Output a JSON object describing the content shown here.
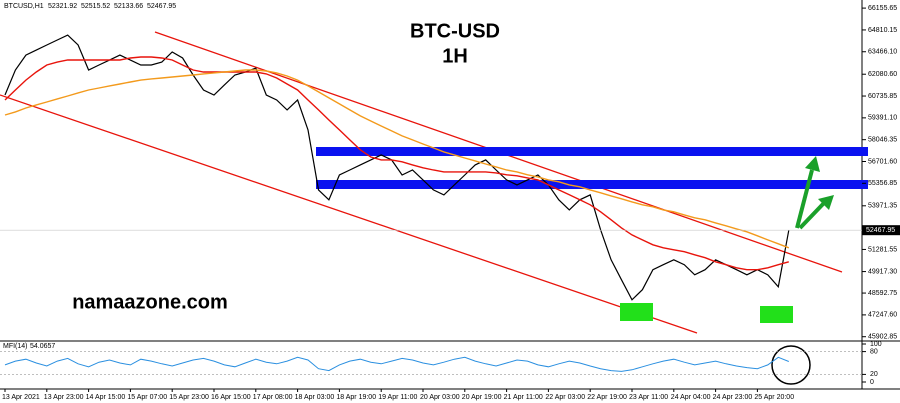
{
  "chart_data": {
    "type": "line",
    "symbol": "BTCUSD,H1",
    "ohlc": [
      52321.92,
      52515.52,
      52133.66,
      52467.95
    ],
    "title": "BTC-USD",
    "subtitle": "1H",
    "watermark": "namaazone.com",
    "categories": [
      "13 Apr 2021",
      null,
      null,
      null,
      "13 Apr 23:00",
      null,
      null,
      null,
      "14 Apr 15:00",
      null,
      null,
      null,
      "15 Apr 07:00",
      null,
      null,
      null,
      "15 Apr 23:00",
      null,
      null,
      null,
      "16 Apr 15:00",
      null,
      null,
      null,
      "17 Apr 08:00",
      null,
      null,
      null,
      "18 Apr 03:00",
      null,
      null,
      null,
      "18 Apr 19:00",
      null,
      null,
      null,
      "19 Apr 11:00",
      null,
      null,
      null,
      "20 Apr 03:00",
      null,
      null,
      null,
      "20 Apr 19:00",
      null,
      null,
      null,
      "21 Apr 11:00",
      null,
      null,
      null,
      "22 Apr 03:00",
      null,
      null,
      null,
      "22 Apr 19:00",
      null,
      null,
      null,
      "23 Apr 11:00",
      null,
      null,
      null,
      "24 Apr 04:00",
      null,
      null,
      null,
      "24 Apr 23:00",
      null,
      null,
      null,
      "25 Apr 20:00",
      null,
      null,
      null
    ],
    "series": [
      {
        "color": "#000000",
        "values": [
          60800,
          62340,
          63260,
          63570,
          63880,
          64190,
          64490,
          63880,
          62340,
          62650,
          62950,
          63260,
          62950,
          62650,
          62650,
          62830,
          63450,
          63080,
          62030,
          61110,
          60800,
          61420,
          62030,
          62220,
          62460,
          60800,
          60490,
          59880,
          60490,
          58650,
          54950,
          54340,
          55870,
          56180,
          56490,
          56800,
          57110,
          56800,
          55870,
          56180,
          55570,
          54950,
          54640,
          55260,
          55870,
          56490,
          56800,
          56180,
          55570,
          55260,
          55570,
          55870,
          55260,
          54340,
          53720,
          54340,
          54640,
          52490,
          50640,
          49410,
          48180,
          48800,
          50030,
          50340,
          50640,
          50340,
          49720,
          50030,
          50640,
          50340,
          50030,
          49720,
          50030,
          49720,
          48980,
          52470
        ]
      },
      {
        "color": "#e8140c",
        "values": [
          60490,
          61110,
          61720,
          62220,
          62650,
          62830,
          62960,
          62960,
          62960,
          62960,
          62960,
          62960,
          63080,
          63140,
          63140,
          63080,
          62960,
          62650,
          62340,
          62220,
          62220,
          62220,
          62220,
          62220,
          62220,
          62100,
          61850,
          61480,
          61110,
          60490,
          59880,
          59260,
          58650,
          58030,
          57420,
          56980,
          56800,
          56800,
          56680,
          56490,
          56310,
          56180,
          56060,
          56060,
          56060,
          56060,
          56060,
          56000,
          55880,
          55820,
          55690,
          55570,
          55260,
          54950,
          54650,
          54340,
          54030,
          53600,
          53110,
          52610,
          52180,
          51870,
          51570,
          51380,
          51260,
          51140,
          50950,
          50770,
          50520,
          50340,
          50150,
          50030,
          50030,
          50150,
          50340,
          50520
        ]
      },
      {
        "color": "#f39a1c",
        "values": [
          59570,
          59760,
          60000,
          60190,
          60370,
          60560,
          60740,
          60930,
          61110,
          61230,
          61360,
          61480,
          61600,
          61720,
          61790,
          61850,
          61910,
          61970,
          62030,
          62100,
          62160,
          62220,
          62280,
          62340,
          62340,
          62280,
          62160,
          61970,
          61720,
          61360,
          60990,
          60620,
          60250,
          59880,
          59510,
          59200,
          58890,
          58590,
          58280,
          58030,
          57780,
          57540,
          57290,
          57110,
          56920,
          56740,
          56550,
          56370,
          56180,
          56060,
          55880,
          55750,
          55570,
          55450,
          55260,
          55140,
          54950,
          54770,
          54580,
          54400,
          54210,
          54030,
          53910,
          53720,
          53600,
          53410,
          53230,
          53110,
          52920,
          52740,
          52550,
          52370,
          52120,
          51870,
          51630,
          51380
        ]
      }
    ],
    "ylim": [
      45700,
      66470
    ],
    "yticks": [
      66155.65,
      64810.15,
      {
        "value": 63466.1,
        "label": "63466.10"
      },
      {
        "value": 62080.6,
        "label": "62080.60"
      },
      60735.85,
      {
        "value": 59391.1,
        "label": "59391.10"
      },
      58046.35,
      {
        "value": 56701.6,
        "label": "56701.60"
      },
      55356.85,
      53971.35,
      51281.55,
      {
        "value": 49917.3,
        "label": "49917.30"
      },
      48592.75,
      {
        "value": 47247.6,
        "label": "47247.60"
      },
      45902.85
    ],
    "indicator": {
      "name": "MFI(14)",
      "color": "#2a8fe0",
      "ylim": [
        0,
        100
      ],
      "yticks": [
        100,
        80,
        20,
        0
      ],
      "values": [
        45,
        55,
        60,
        50,
        42,
        55,
        62,
        48,
        40,
        52,
        58,
        50,
        45,
        60,
        55,
        48,
        42,
        50,
        58,
        62,
        55,
        45,
        40,
        50,
        60,
        52,
        48,
        55,
        65,
        58,
        35,
        30,
        45,
        55,
        60,
        52,
        48,
        55,
        62,
        58,
        50,
        45,
        52,
        60,
        65,
        55,
        48,
        42,
        50,
        58,
        55,
        45,
        40,
        48,
        55,
        50,
        42,
        35,
        30,
        28,
        32,
        40,
        48,
        55,
        60,
        52,
        45,
        50,
        55,
        48,
        42,
        38,
        35,
        45,
        65,
        54.0657
      ]
    }
  }
}
